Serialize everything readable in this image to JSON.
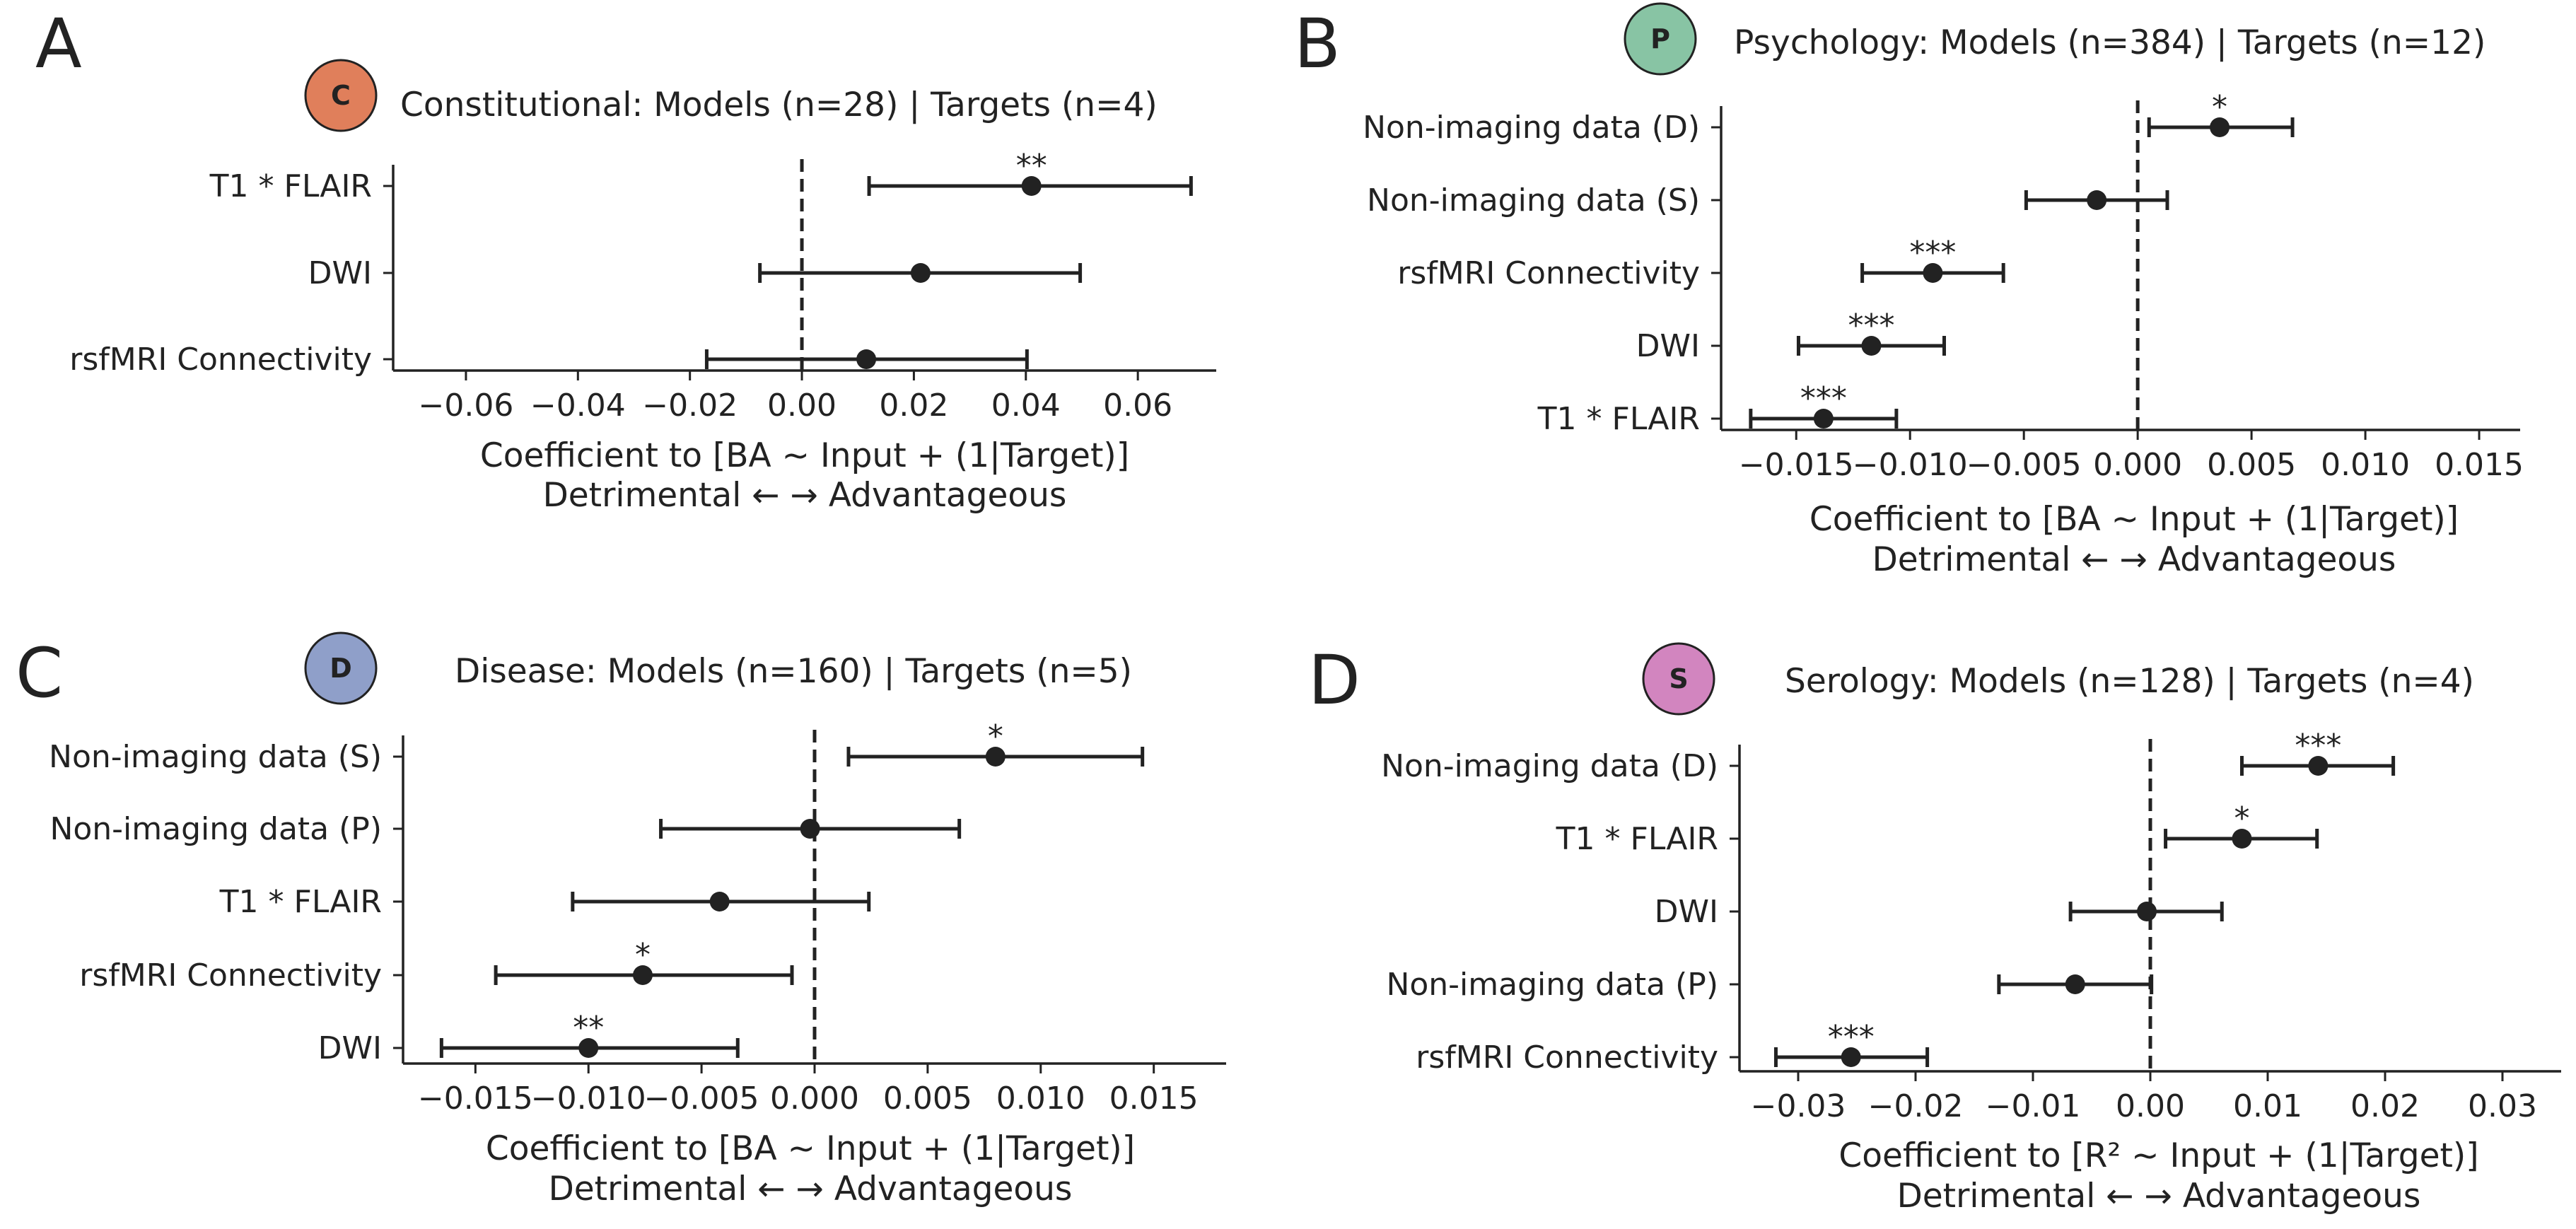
{
  "chart_data": [
    {
      "type": "forest",
      "panel_letter": "A",
      "badge": {
        "letter": "C",
        "color": "#e07f5b"
      },
      "title": "Constitutional: Models (n=28) | Targets (n=4)",
      "xlabel": "Coefficient to [BA ~ Input + (1|Target)]",
      "xlabel2": "Detrimental ← → Advantageous",
      "xlim": [
        -0.073,
        0.074
      ],
      "xticks": [
        -0.06,
        -0.04,
        -0.02,
        0.0,
        0.02,
        0.04,
        0.06
      ],
      "xtick_labels": [
        "−0.06",
        "−0.04",
        "−0.02",
        "0.00",
        "0.02",
        "0.04",
        "0.06"
      ],
      "categories": [
        "T1 * FLAIR",
        "DWI",
        "rsfMRI Connectivity"
      ],
      "points": [
        {
          "label": "T1 * FLAIR",
          "coef": 0.041,
          "ci": [
            0.012,
            0.0695
          ],
          "sig": "**"
        },
        {
          "label": "DWI",
          "coef": 0.0212,
          "ci": [
            -0.0075,
            0.0497
          ],
          "sig": ""
        },
        {
          "label": "rsfMRI Connectivity",
          "coef": 0.0115,
          "ci": [
            -0.017,
            0.0402
          ],
          "sig": ""
        }
      ]
    },
    {
      "type": "forest",
      "panel_letter": "B",
      "badge": {
        "letter": "P",
        "color": "#88c4a4"
      },
      "title": "Psychology: Models (n=384) | Targets (n=12)",
      "xlabel": "Coefficient to [BA ~ Input + (1|Target)]",
      "xlabel2": "Detrimental ← → Advantageous",
      "xlim": [
        -0.0183,
        0.0168
      ],
      "xticks": [
        -0.015,
        -0.01,
        -0.005,
        0.0,
        0.005,
        0.01,
        0.015
      ],
      "xtick_labels": [
        "−0.015",
        "−0.010",
        "−0.005",
        "0.000",
        "0.005",
        "0.010",
        "0.015"
      ],
      "categories": [
        "Non-imaging data (D)",
        "Non-imaging data (S)",
        "rsfMRI Connectivity",
        "DWI",
        "T1 * FLAIR"
      ],
      "points": [
        {
          "label": "Non-imaging data (D)",
          "coef": 0.0036,
          "ci": [
            0.0005,
            0.0068
          ],
          "sig": "*"
        },
        {
          "label": "Non-imaging data (S)",
          "coef": -0.0018,
          "ci": [
            -0.0049,
            0.0013
          ],
          "sig": ""
        },
        {
          "label": "rsfMRI Connectivity",
          "coef": -0.009,
          "ci": [
            -0.0121,
            -0.0059
          ],
          "sig": "***"
        },
        {
          "label": "DWI",
          "coef": -0.0117,
          "ci": [
            -0.0149,
            -0.0085
          ],
          "sig": "***"
        },
        {
          "label": "T1 * FLAIR",
          "coef": -0.0138,
          "ci": [
            -0.017,
            -0.0106
          ],
          "sig": "***"
        }
      ]
    },
    {
      "type": "forest",
      "panel_letter": "C",
      "badge": {
        "letter": "D",
        "color": "#8f9fc9"
      },
      "title": "Disease: Models (n=160) | Targets (n=5)",
      "xlabel": "Coefficient to [BA ~ Input + (1|Target)]",
      "xlabel2": "Detrimental ← → Advantageous",
      "xlim": [
        -0.0182,
        0.0182
      ],
      "xticks": [
        -0.015,
        -0.01,
        -0.005,
        0.0,
        0.005,
        0.01,
        0.015
      ],
      "xtick_labels": [
        "−0.015",
        "−0.010",
        "−0.005",
        "0.000",
        "0.005",
        "0.010",
        "0.015"
      ],
      "categories": [
        "Non-imaging data (S)",
        "Non-imaging data (P)",
        "T1 * FLAIR",
        "rsfMRI Connectivity",
        "DWI"
      ],
      "points": [
        {
          "label": "Non-imaging data (S)",
          "coef": 0.008,
          "ci": [
            0.0015,
            0.0145
          ],
          "sig": "*"
        },
        {
          "label": "Non-imaging data (P)",
          "coef": -0.0002,
          "ci": [
            -0.0068,
            0.0064
          ],
          "sig": ""
        },
        {
          "label": "T1 * FLAIR",
          "coef": -0.0042,
          "ci": [
            -0.0107,
            0.0024
          ],
          "sig": ""
        },
        {
          "label": "rsfMRI Connectivity",
          "coef": -0.0076,
          "ci": [
            -0.0141,
            -0.001
          ],
          "sig": "*"
        },
        {
          "label": "DWI",
          "coef": -0.01,
          "ci": [
            -0.0165,
            -0.0034
          ],
          "sig": "**"
        }
      ]
    },
    {
      "type": "forest",
      "panel_letter": "D",
      "badge": {
        "letter": "S",
        "color": "#d285bf"
      },
      "title": "Serology: Models (n=128) | Targets (n=4)",
      "xlabel": "Coefficient to [R² ~ Input + (1|Target)]",
      "xlabel2": "Detrimental ← → Advantageous",
      "xlim": [
        -0.035,
        0.035
      ],
      "xticks": [
        -0.03,
        -0.02,
        -0.01,
        0.0,
        0.01,
        0.02,
        0.03
      ],
      "xtick_labels": [
        "−0.03",
        "−0.02",
        "−0.01",
        "0.00",
        "0.01",
        "0.02",
        "0.03"
      ],
      "categories": [
        "Non-imaging data (D)",
        "T1 * FLAIR",
        "DWI",
        "Non-imaging data (P)",
        "rsfMRI Connectivity"
      ],
      "points": [
        {
          "label": "Non-imaging data (D)",
          "coef": 0.0143,
          "ci": [
            0.0078,
            0.0207
          ],
          "sig": "***"
        },
        {
          "label": "T1 * FLAIR",
          "coef": 0.0078,
          "ci": [
            0.0013,
            0.0142
          ],
          "sig": "*"
        },
        {
          "label": "DWI",
          "coef": -0.0003,
          "ci": [
            -0.0068,
            0.0061
          ],
          "sig": ""
        },
        {
          "label": "Non-imaging data (P)",
          "coef": -0.0064,
          "ci": [
            -0.0129,
            0.0001
          ],
          "sig": ""
        },
        {
          "label": "rsfMRI Connectivity",
          "coef": -0.0255,
          "ci": [
            -0.0319,
            -0.019
          ],
          "sig": "***"
        }
      ]
    }
  ]
}
